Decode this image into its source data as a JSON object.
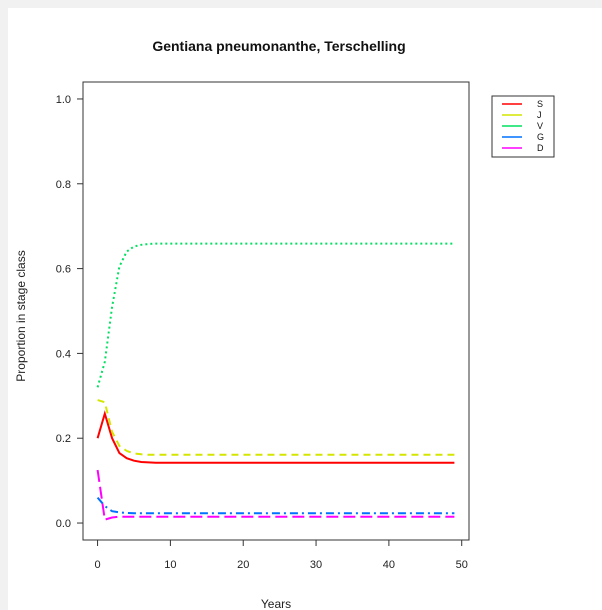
{
  "chart_data": {
    "type": "line",
    "title": "Gentiana pneumonanthe, Terschelling",
    "xlabel": "Years",
    "ylabel": "Proportion in stage class",
    "xlim": [
      -2,
      51
    ],
    "ylim": [
      -0.04,
      1.04
    ],
    "xticks": [
      0,
      10,
      20,
      30,
      40,
      50
    ],
    "yticks": [
      0.0,
      0.2,
      0.4,
      0.6,
      0.8,
      1.0
    ],
    "ytick_labels": [
      "0.0",
      "0.2",
      "0.4",
      "0.6",
      "0.8",
      "1.0"
    ],
    "legend_position": "top-right",
    "grid": false,
    "x": [
      0,
      1,
      2,
      3,
      4,
      5,
      6,
      7,
      8,
      9,
      10,
      11,
      12,
      13,
      14,
      15,
      16,
      17,
      18,
      19,
      20,
      21,
      22,
      23,
      24,
      25,
      26,
      27,
      28,
      29,
      30,
      31,
      32,
      33,
      34,
      35,
      36,
      37,
      38,
      39,
      40,
      41,
      42,
      43,
      44,
      45,
      46,
      47,
      48,
      49
    ],
    "series": [
      {
        "name": "S",
        "color": "#ff0000",
        "dash": "solid",
        "values": [
          0.2,
          0.258,
          0.2,
          0.165,
          0.153,
          0.147,
          0.144,
          0.143,
          0.142,
          0.142,
          0.142,
          0.142,
          0.142,
          0.142,
          0.142,
          0.142,
          0.142,
          0.142,
          0.142,
          0.142,
          0.142,
          0.142,
          0.142,
          0.142,
          0.142,
          0.142,
          0.142,
          0.142,
          0.142,
          0.142,
          0.142,
          0.142,
          0.142,
          0.142,
          0.142,
          0.142,
          0.142,
          0.142,
          0.142,
          0.142,
          0.142,
          0.142,
          0.142,
          0.142,
          0.142,
          0.142,
          0.142,
          0.142,
          0.142,
          0.142
        ]
      },
      {
        "name": "J",
        "color": "#d4e600",
        "dash": "dashed",
        "values": [
          0.29,
          0.285,
          0.215,
          0.182,
          0.17,
          0.164,
          0.162,
          0.161,
          0.161,
          0.161,
          0.161,
          0.161,
          0.161,
          0.161,
          0.161,
          0.161,
          0.161,
          0.161,
          0.161,
          0.161,
          0.161,
          0.161,
          0.161,
          0.161,
          0.161,
          0.161,
          0.161,
          0.161,
          0.161,
          0.161,
          0.161,
          0.161,
          0.161,
          0.161,
          0.161,
          0.161,
          0.161,
          0.161,
          0.161,
          0.161,
          0.161,
          0.161,
          0.161,
          0.161,
          0.161,
          0.161,
          0.161,
          0.161,
          0.161,
          0.161
        ]
      },
      {
        "name": "V",
        "color": "#00e060",
        "dash": "dotted",
        "values": [
          0.32,
          0.38,
          0.51,
          0.605,
          0.64,
          0.652,
          0.656,
          0.658,
          0.659,
          0.659,
          0.659,
          0.659,
          0.659,
          0.659,
          0.659,
          0.659,
          0.659,
          0.659,
          0.659,
          0.659,
          0.659,
          0.659,
          0.659,
          0.659,
          0.659,
          0.659,
          0.659,
          0.659,
          0.659,
          0.659,
          0.659,
          0.659,
          0.659,
          0.659,
          0.659,
          0.659,
          0.659,
          0.659,
          0.659,
          0.659,
          0.659,
          0.659,
          0.659,
          0.659,
          0.659,
          0.659,
          0.659,
          0.659,
          0.659,
          0.659
        ]
      },
      {
        "name": "G",
        "color": "#0070ff",
        "dash": "dashdot",
        "values": [
          0.06,
          0.04,
          0.028,
          0.025,
          0.024,
          0.023,
          0.023,
          0.023,
          0.023,
          0.023,
          0.023,
          0.023,
          0.023,
          0.023,
          0.023,
          0.023,
          0.023,
          0.023,
          0.023,
          0.023,
          0.023,
          0.023,
          0.023,
          0.023,
          0.023,
          0.023,
          0.023,
          0.023,
          0.023,
          0.023,
          0.023,
          0.023,
          0.023,
          0.023,
          0.023,
          0.023,
          0.023,
          0.023,
          0.023,
          0.023,
          0.023,
          0.023,
          0.023,
          0.023,
          0.023,
          0.023,
          0.023,
          0.023,
          0.023,
          0.023
        ]
      },
      {
        "name": "D",
        "color": "#ff00ff",
        "dash": "longdash",
        "values": [
          0.125,
          0.008,
          0.013,
          0.015,
          0.015,
          0.015,
          0.015,
          0.015,
          0.015,
          0.015,
          0.015,
          0.015,
          0.015,
          0.015,
          0.015,
          0.015,
          0.015,
          0.015,
          0.015,
          0.015,
          0.015,
          0.015,
          0.015,
          0.015,
          0.015,
          0.015,
          0.015,
          0.015,
          0.015,
          0.015,
          0.015,
          0.015,
          0.015,
          0.015,
          0.015,
          0.015,
          0.015,
          0.015,
          0.015,
          0.015,
          0.015,
          0.015,
          0.015,
          0.015,
          0.015,
          0.015,
          0.015,
          0.015,
          0.015,
          0.015
        ]
      }
    ]
  }
}
